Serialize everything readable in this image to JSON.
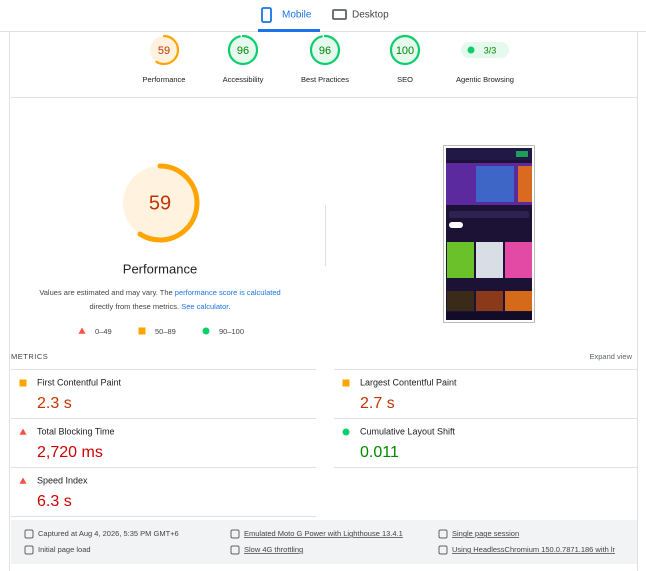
{
  "tabs": [
    {
      "label": "Mobile",
      "active": true
    },
    {
      "label": "Desktop",
      "active": false
    }
  ],
  "categories": [
    {
      "label": "Performance",
      "score": 59,
      "color": "#ffa400"
    },
    {
      "label": "Accessibility",
      "score": 96,
      "color": "#0cce6b"
    },
    {
      "label": "Best Practices",
      "score": 96,
      "color": "#0cce6b"
    },
    {
      "label": "SEO",
      "score": 100,
      "color": "#0cce6b"
    },
    {
      "label": "Agentic Browsing",
      "score_text": "3/3",
      "color": "#0cce6b"
    }
  ],
  "performance": {
    "score": 59,
    "color": "#ffa400",
    "title": "Performance",
    "description": [
      [
        {
          "text": "Values are estimated and may vary. The ",
          "link": false
        },
        {
          "text": "performance score is calculated",
          "link": true
        }
      ],
      [
        {
          "text": "directly from these metrics. ",
          "link": false
        },
        {
          "text": "See calculator",
          "link": true
        },
        {
          "text": ".",
          "link": false
        }
      ]
    ],
    "legend": [
      {
        "shape": "triangle",
        "color": "#ff4e42",
        "label": "0–49"
      },
      {
        "shape": "square",
        "color": "#ffa400",
        "label": "50–89"
      },
      {
        "shape": "circle",
        "color": "#0cce6b",
        "label": "90–100"
      }
    ]
  },
  "metrics_header": {
    "title": "METRICS",
    "action": "Expand view"
  },
  "metrics": [
    {
      "name": "First Contentful Paint",
      "value": "2.3 s",
      "shape": "square",
      "color": "#ffa400",
      "text_color": "#c33300"
    },
    {
      "name": "Largest Contentful Paint",
      "value": "2.7 s",
      "shape": "square",
      "color": "#ffa400",
      "text_color": "#c33300"
    },
    {
      "name": "Total Blocking Time",
      "value": "2,720 ms",
      "shape": "triangle",
      "color": "#ff4e42",
      "text_color": "#cc0000"
    },
    {
      "name": "Cumulative Layout Shift",
      "value": "0.011",
      "shape": "circle",
      "color": "#0cce6b",
      "text_color": "#008800"
    },
    {
      "name": "Speed Index",
      "value": "6.3 s",
      "shape": "triangle",
      "color": "#ff4e42",
      "text_color": "#cc0000"
    }
  ],
  "footer": [
    {
      "text": "Captured at Aug 4, 2026, 5:35 PM GMT+6",
      "underline": false
    },
    {
      "text": "Initial page load",
      "underline": false
    },
    {
      "text": "Emulated Moto G Power with Lighthouse 13.4.1",
      "underline": true
    },
    {
      "text": "Slow 4G throttling",
      "underline": true
    },
    {
      "text": "Single page session",
      "underline": true
    },
    {
      "text": "Using HeadlessChromium 150.0.7871.186 with lr",
      "underline": true
    }
  ]
}
